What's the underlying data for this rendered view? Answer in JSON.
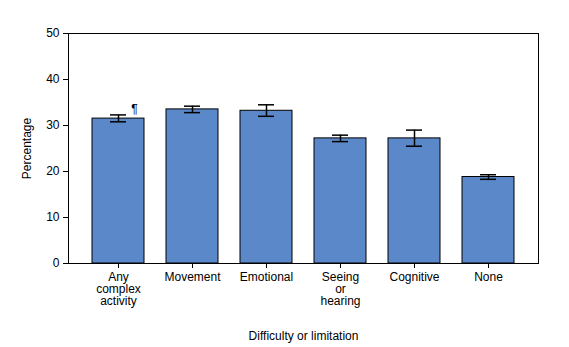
{
  "chart_data": {
    "type": "bar",
    "x_label": "Difficulty or limitation",
    "y_label": "Percentage",
    "categories": [
      "Any complex activity",
      "Movement",
      "Emotional",
      "Seeing or hearing",
      "Cognitive",
      "None"
    ],
    "values": [
      31.5,
      33.5,
      33.2,
      27.2,
      27.2,
      18.8
    ],
    "error_low": [
      30.8,
      32.8,
      32.0,
      26.5,
      25.5,
      18.3
    ],
    "error_high": [
      32.3,
      34.2,
      34.5,
      27.9,
      29.0,
      19.3
    ],
    "color": "#5b88c8",
    "ylim": [
      0,
      50
    ],
    "yticks": [
      0,
      10,
      20,
      30,
      40,
      50
    ],
    "grid": false,
    "annotations": [
      {
        "text": "¶",
        "category": "Any complex activity"
      }
    ]
  }
}
